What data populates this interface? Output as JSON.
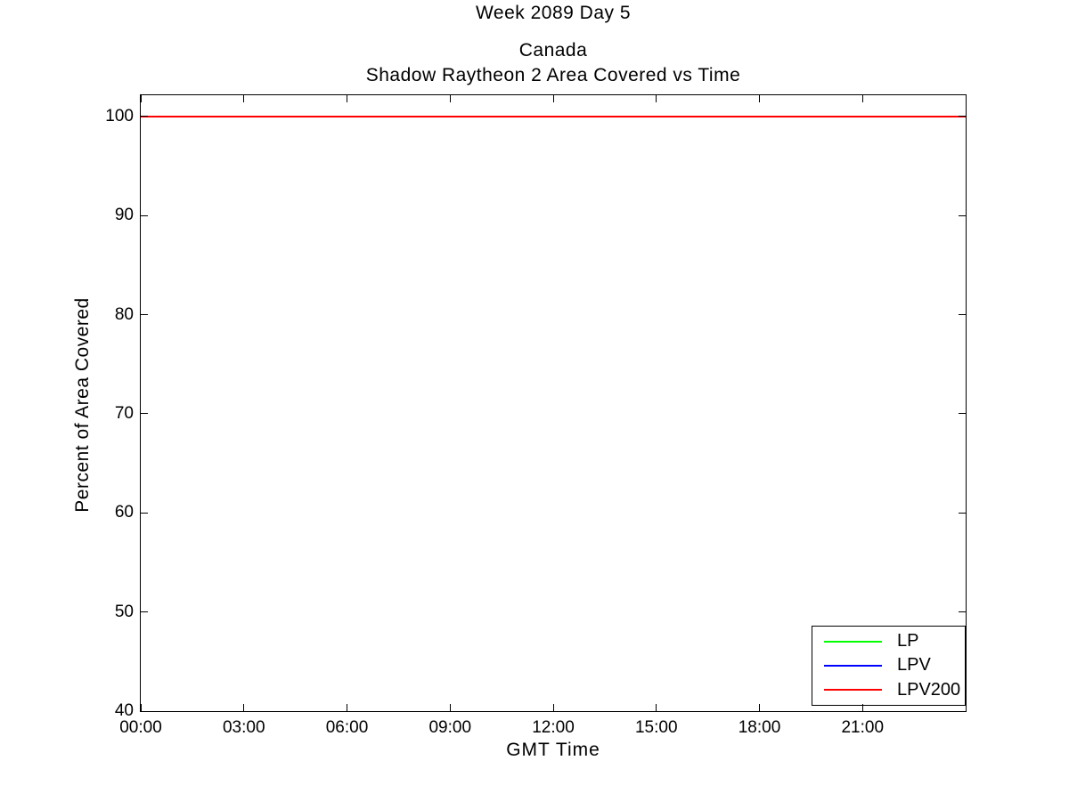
{
  "figure": {
    "suptitle": "Week 2089 Day 5",
    "title_region": "Canada",
    "title": "Shadow Raytheon 2 Area Covered vs Time",
    "xlabel": "GMT Time",
    "ylabel": "Percent of Area Covered"
  },
  "colors": {
    "background": "#ffffff",
    "axis": "#000000",
    "text": "#000000"
  },
  "chart_data": {
    "type": "line",
    "suptitle": "Week 2089 Day 5",
    "title": [
      "Canada",
      "Shadow Raytheon 2 Area Covered vs Time"
    ],
    "xlabel": "GMT Time",
    "ylabel": "Percent of Area Covered",
    "x_unit": "GMT hours",
    "xlim_hours": [
      0,
      24
    ],
    "ylim": [
      40,
      102.15
    ],
    "y_ticks": [
      40,
      50,
      60,
      70,
      80,
      90,
      100
    ],
    "x_ticks": [
      {
        "hour": 0,
        "label": "00:00"
      },
      {
        "hour": 3,
        "label": "03:00"
      },
      {
        "hour": 6,
        "label": "06:00"
      },
      {
        "hour": 9,
        "label": "09:00"
      },
      {
        "hour": 12,
        "label": "12:00"
      },
      {
        "hour": 15,
        "label": "15:00"
      },
      {
        "hour": 18,
        "label": "18:00"
      },
      {
        "hour": 21,
        "label": "21:00"
      }
    ],
    "grid": false,
    "legend_position": "lower right",
    "series": [
      {
        "name": "LP",
        "color": "#00ff00",
        "x_hours": [
          0,
          24
        ],
        "values": [
          100,
          100
        ]
      },
      {
        "name": "LPV",
        "color": "#0000ff",
        "x_hours": [
          0,
          24
        ],
        "values": [
          100,
          100
        ]
      },
      {
        "name": "LPV200",
        "color": "#ff0000",
        "x_hours": [
          0,
          24
        ],
        "values": [
          100,
          100
        ]
      }
    ]
  }
}
